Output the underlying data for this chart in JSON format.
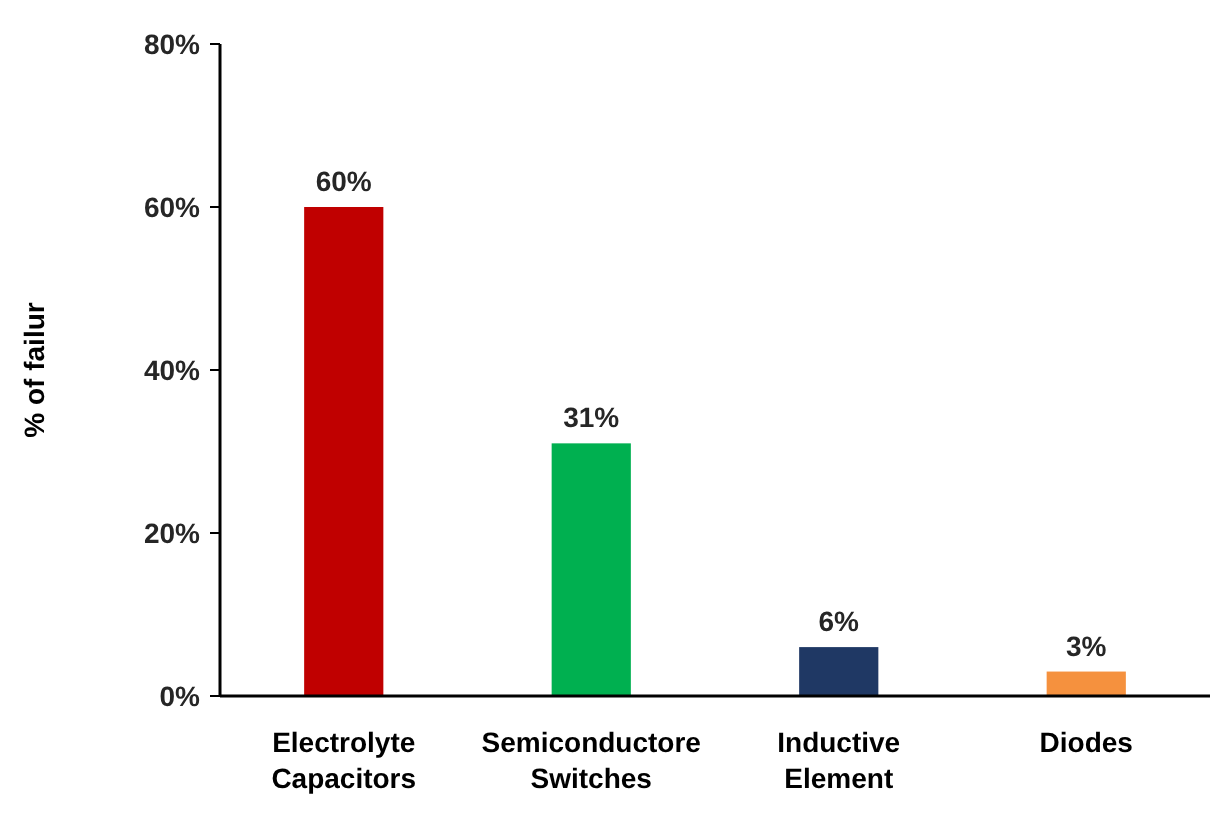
{
  "chart_data": {
    "type": "bar",
    "ylabel": "% of failur",
    "categories": [
      "Electrolyte Capacitors",
      "Semiconductore Switches",
      "Inductive Element",
      "Diodes"
    ],
    "values": [
      60,
      31,
      6,
      3
    ],
    "colors": [
      "#c00000",
      "#00b050",
      "#1f3864",
      "#f5913e"
    ],
    "ylim": [
      0,
      80
    ],
    "yticks": [
      {
        "value": 0,
        "label": "0%"
      },
      {
        "value": 20,
        "label": "20%"
      },
      {
        "value": 40,
        "label": "40%"
      },
      {
        "value": 60,
        "label": "60%"
      },
      {
        "value": 80,
        "label": "80%"
      }
    ],
    "value_labels": [
      "60%",
      "31%",
      "6%",
      "3%"
    ],
    "grid": false
  }
}
